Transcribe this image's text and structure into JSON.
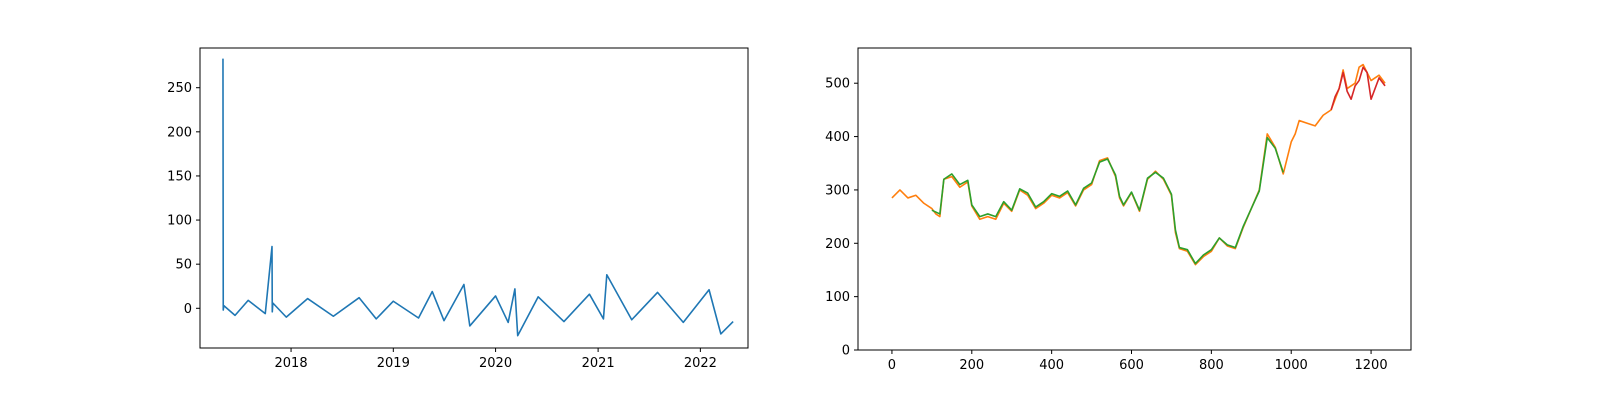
{
  "colors": {
    "line": "#1f77b4",
    "orange": "#ff7f0e",
    "green": "#2ca02c",
    "red": "#d62728",
    "axes": "#000000"
  },
  "chart_data": [
    {
      "type": "line",
      "title": "",
      "xlabel": "",
      "ylabel": "",
      "x_type": "date",
      "xlim": [
        "2017-02-10",
        "2022-06-20"
      ],
      "ylim": [
        -45,
        295
      ],
      "x_ticks": [
        "2018",
        "2019",
        "2020",
        "2021",
        "2022"
      ],
      "y_ticks": [
        0,
        50,
        100,
        150,
        200,
        250
      ],
      "grid": false,
      "series": [
        {
          "color": "#1f77b4",
          "x": [
            "2017-05-03",
            "2017-05-04",
            "2017-05-06",
            "2017-06-15",
            "2017-08-01",
            "2017-10-01",
            "2017-10-25",
            "2017-10-26",
            "2017-10-28",
            "2017-12-15",
            "2018-03-01",
            "2018-06-01",
            "2018-09-01",
            "2018-11-01",
            "2019-01-01",
            "2019-04-01",
            "2019-05-20",
            "2019-07-01",
            "2019-09-10",
            "2019-10-01",
            "2020-01-01",
            "2020-02-15",
            "2020-03-10",
            "2020-03-20",
            "2020-06-01",
            "2020-09-01",
            "2020-12-01",
            "2021-01-20",
            "2021-02-01",
            "2021-05-01",
            "2021-08-01",
            "2021-11-01",
            "2022-02-01",
            "2022-03-15",
            "2022-04-28"
          ],
          "y": [
            283,
            -2,
            3,
            -8,
            9,
            -6,
            70,
            -4,
            6,
            -10,
            11,
            -9,
            12,
            -12,
            8,
            -11,
            19,
            -14,
            27,
            -20,
            14,
            -16,
            22,
            -31,
            13,
            -15,
            16,
            -12,
            38,
            -13,
            18,
            -16,
            21,
            -29,
            -15
          ]
        }
      ]
    },
    {
      "type": "line",
      "title": "",
      "xlabel": "",
      "ylabel": "",
      "xlim": [
        -85,
        1300
      ],
      "ylim": [
        0,
        566
      ],
      "x_ticks": [
        0,
        200,
        400,
        600,
        800,
        1000,
        1200
      ],
      "y_ticks": [
        0,
        100,
        200,
        300,
        400,
        500
      ],
      "grid": false,
      "series": [
        {
          "color": "#ff7f0e",
          "x": [
            0,
            20,
            40,
            60,
            80,
            100,
            110,
            120,
            130,
            150,
            170,
            190,
            200,
            220,
            240,
            260,
            280,
            300,
            320,
            340,
            360,
            380,
            400,
            420,
            440,
            460,
            480,
            500,
            520,
            540,
            560,
            570,
            580,
            600,
            620,
            640,
            660,
            680,
            700,
            710,
            720,
            740,
            760,
            780,
            800,
            820,
            840,
            860,
            880,
            900,
            920,
            940,
            960,
            980,
            1000,
            1010,
            1020,
            1040,
            1060,
            1080,
            1100,
            1120,
            1130,
            1140,
            1160,
            1170,
            1180,
            1200,
            1220,
            1235
          ],
          "y": [
            285,
            300,
            285,
            290,
            275,
            265,
            255,
            250,
            320,
            325,
            305,
            315,
            270,
            245,
            250,
            245,
            275,
            260,
            300,
            290,
            265,
            275,
            290,
            285,
            295,
            270,
            300,
            310,
            355,
            360,
            325,
            285,
            270,
            295,
            260,
            320,
            335,
            320,
            290,
            220,
            190,
            185,
            160,
            175,
            185,
            210,
            195,
            190,
            230,
            265,
            300,
            405,
            380,
            330,
            390,
            405,
            430,
            425,
            420,
            440,
            450,
            490,
            525,
            490,
            500,
            530,
            535,
            505,
            515,
            500
          ]
        },
        {
          "color": "#2ca02c",
          "x": [
            100,
            120,
            130,
            150,
            170,
            190,
            200,
            220,
            240,
            260,
            280,
            300,
            320,
            340,
            360,
            380,
            400,
            420,
            440,
            460,
            480,
            500,
            520,
            540,
            560,
            570,
            580,
            600,
            620,
            640,
            660,
            680,
            700,
            710,
            720,
            740,
            760,
            780,
            800,
            820,
            840,
            860,
            880,
            900,
            920,
            940,
            960,
            980
          ],
          "y": [
            262,
            255,
            320,
            330,
            310,
            318,
            272,
            250,
            255,
            250,
            278,
            262,
            302,
            294,
            268,
            278,
            293,
            288,
            298,
            272,
            303,
            313,
            352,
            358,
            328,
            288,
            272,
            296,
            262,
            322,
            333,
            322,
            292,
            225,
            192,
            188,
            162,
            178,
            188,
            210,
            197,
            192,
            232,
            265,
            298,
            398,
            378,
            333
          ]
        },
        {
          "color": "#d62728",
          "x": [
            1100,
            1110,
            1120,
            1130,
            1140,
            1150,
            1160,
            1170,
            1180,
            1190,
            1200,
            1210,
            1220,
            1235
          ],
          "y": [
            450,
            475,
            490,
            520,
            485,
            470,
            495,
            505,
            530,
            520,
            470,
            490,
            510,
            495
          ]
        }
      ]
    }
  ]
}
